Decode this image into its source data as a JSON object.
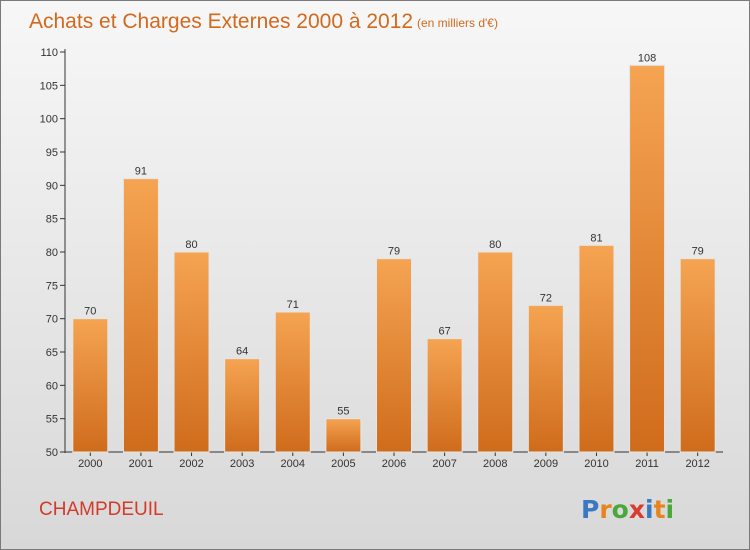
{
  "chart": {
    "title": "Achats et Charges Externes 2000 à 2012",
    "unit": "(en milliers d'€)",
    "commune": "CHAMPDEUIL"
  },
  "logo": {
    "text": "Proxiti",
    "letter_colors": [
      "#3a78c2",
      "#e8841f",
      "#4aa83a",
      "#d93a32",
      "#3a78c2",
      "#e8841f",
      "#4aa83a"
    ]
  },
  "colors": {
    "bar_top": "#f5a452",
    "bar_bottom": "#cf6c1c",
    "title": "#d2691e",
    "commune": "#d33a2a"
  },
  "chart_data": {
    "type": "bar",
    "categories": [
      "2000",
      "2001",
      "2002",
      "2003",
      "2004",
      "2005",
      "2006",
      "2007",
      "2008",
      "2009",
      "2010",
      "2011",
      "2012"
    ],
    "values": [
      70,
      91,
      80,
      64,
      71,
      55,
      79,
      67,
      80,
      72,
      81,
      108,
      79
    ],
    "ylim": [
      50,
      110
    ],
    "yticks": [
      50,
      55,
      60,
      65,
      70,
      75,
      80,
      85,
      90,
      95,
      100,
      105,
      110
    ],
    "grid": false,
    "legend": "none"
  }
}
